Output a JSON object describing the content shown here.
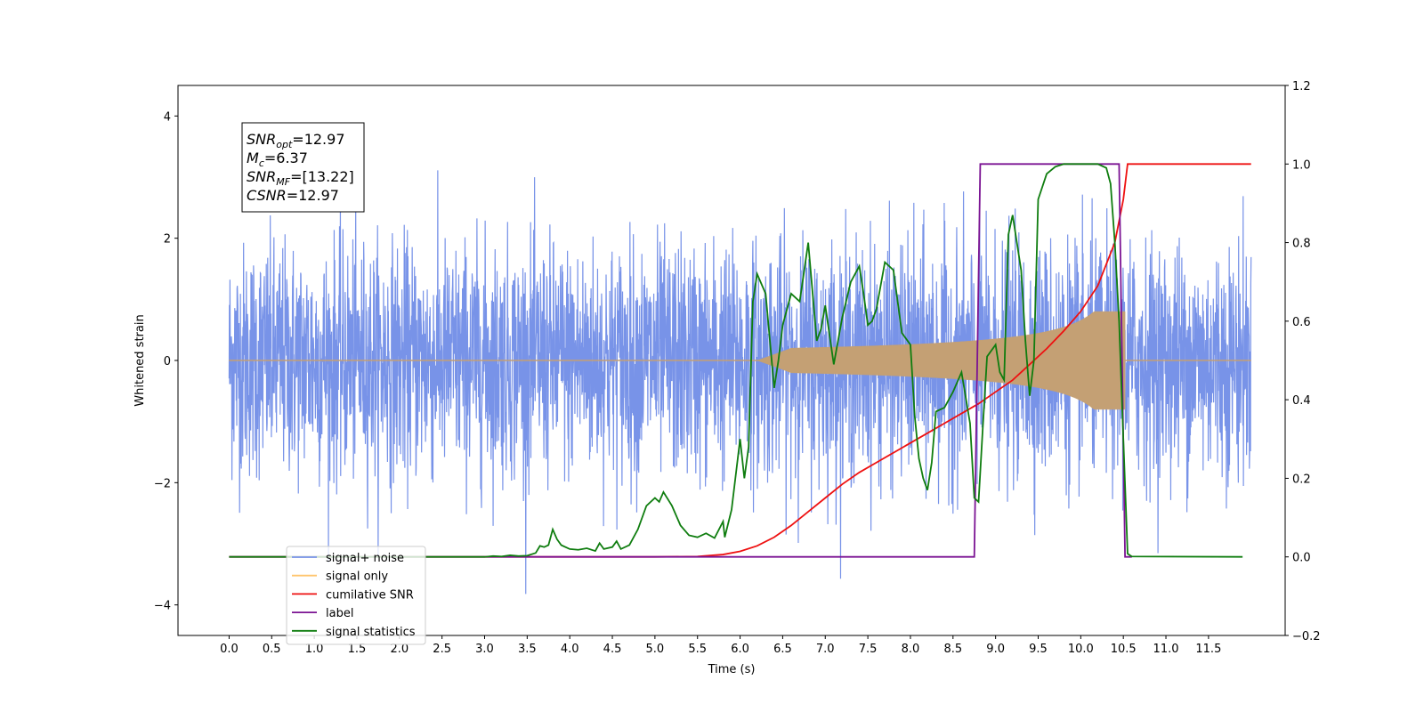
{
  "chart_data": {
    "type": "line",
    "xlabel": "Time (s)",
    "ylabel": "Whitened strain",
    "xlim": [
      -0.6,
      12.4
    ],
    "ylim": [
      -4.5,
      4.5
    ],
    "y2lim": [
      -0.2,
      1.2
    ],
    "x_ticks": [
      "0.0",
      "0.5",
      "1.0",
      "1.5",
      "2.0",
      "2.5",
      "3.0",
      "3.5",
      "4.0",
      "4.5",
      "5.0",
      "5.5",
      "6.0",
      "6.5",
      "7.0",
      "7.5",
      "8.0",
      "8.5",
      "9.0",
      "9.5",
      "10.0",
      "10.5",
      "11.0",
      "11.5"
    ],
    "y_ticks": [
      "4",
      "2",
      "0",
      "−2",
      "−4"
    ],
    "y2_ticks": [
      "1.2",
      "1.0",
      "0.8",
      "0.6",
      "0.4",
      "0.2",
      "0.0",
      "−0.2"
    ],
    "legend_position": "lower-left",
    "colors": {
      "noise": "#7893e8",
      "signal": "#c4a074",
      "signal_legend": "#ffc56e",
      "csnr": "#ee1111",
      "label": "#7b1393",
      "stats": "#0f7d0f"
    },
    "series": [
      {
        "name": "signal+ noise",
        "axis": "left",
        "description_color": "noise",
        "noise_envelope": {
          "x_range": [
            0.0,
            12.0
          ],
          "typical_amplitude": 1.8,
          "max_peak": 4.1,
          "min_peak": -4.0
        }
      },
      {
        "name": "signal only",
        "axis": "left",
        "description_color": "signal"
      },
      {
        "name": "cumilative SNR",
        "axis": "right",
        "x": [
          0,
          5.0,
          5.5,
          5.8,
          6.0,
          6.2,
          6.4,
          6.6,
          6.8,
          7.0,
          7.2,
          7.4,
          7.6,
          7.8,
          8.0,
          8.2,
          8.4,
          8.6,
          8.8,
          9.0,
          9.2,
          9.4,
          9.6,
          9.8,
          10.0,
          10.2,
          10.4,
          10.5,
          10.55,
          12.0
        ],
        "y": [
          0,
          0,
          0.001,
          0.006,
          0.014,
          0.028,
          0.05,
          0.08,
          0.115,
          0.15,
          0.185,
          0.215,
          0.24,
          0.265,
          0.29,
          0.315,
          0.34,
          0.365,
          0.39,
          0.42,
          0.45,
          0.49,
          0.53,
          0.575,
          0.625,
          0.69,
          0.8,
          0.91,
          1.0,
          1.0
        ]
      },
      {
        "name": "label",
        "axis": "right",
        "x": [
          0,
          8.75,
          8.82,
          10.45,
          10.52,
          10.6
        ],
        "y": [
          0,
          0,
          1,
          1,
          0,
          0
        ]
      },
      {
        "name": "signal statistics",
        "axis": "right",
        "x": [
          0,
          3.0,
          3.1,
          3.2,
          3.3,
          3.4,
          3.5,
          3.6,
          3.65,
          3.7,
          3.75,
          3.8,
          3.85,
          3.9,
          4.0,
          4.1,
          4.2,
          4.3,
          4.35,
          4.4,
          4.5,
          4.55,
          4.6,
          4.7,
          4.8,
          4.9,
          5.0,
          5.05,
          5.1,
          5.2,
          5.3,
          5.4,
          5.5,
          5.6,
          5.7,
          5.8,
          5.82,
          5.9,
          6.0,
          6.05,
          6.1,
          6.15,
          6.2,
          6.3,
          6.4,
          6.45,
          6.5,
          6.6,
          6.7,
          6.8,
          6.9,
          6.95,
          7.0,
          7.1,
          7.2,
          7.3,
          7.4,
          7.45,
          7.5,
          7.55,
          7.6,
          7.7,
          7.8,
          7.9,
          8.0,
          8.05,
          8.1,
          8.15,
          8.2,
          8.25,
          8.3,
          8.4,
          8.5,
          8.6,
          8.7,
          8.75,
          8.8,
          8.85,
          8.9,
          9.0,
          9.05,
          9.1,
          9.15,
          9.2,
          9.3,
          9.35,
          9.4,
          9.45,
          9.5,
          9.6,
          9.7,
          9.8,
          9.9,
          10.0,
          10.1,
          10.2,
          10.3,
          10.35,
          10.4,
          10.45,
          10.5,
          10.55,
          10.6,
          11.9
        ],
        "y": [
          0,
          0,
          0.002,
          0.001,
          0.004,
          0.002,
          0.003,
          0.01,
          0.028,
          0.025,
          0.03,
          0.07,
          0.045,
          0.03,
          0.02,
          0.018,
          0.022,
          0.015,
          0.035,
          0.02,
          0.025,
          0.04,
          0.02,
          0.03,
          0.07,
          0.13,
          0.15,
          0.14,
          0.165,
          0.13,
          0.08,
          0.055,
          0.05,
          0.06,
          0.048,
          0.09,
          0.05,
          0.12,
          0.3,
          0.2,
          0.28,
          0.65,
          0.72,
          0.67,
          0.43,
          0.5,
          0.59,
          0.67,
          0.65,
          0.8,
          0.55,
          0.58,
          0.64,
          0.49,
          0.61,
          0.7,
          0.74,
          0.67,
          0.59,
          0.6,
          0.63,
          0.75,
          0.73,
          0.57,
          0.54,
          0.36,
          0.25,
          0.2,
          0.17,
          0.24,
          0.37,
          0.38,
          0.42,
          0.47,
          0.34,
          0.15,
          0.14,
          0.33,
          0.51,
          0.54,
          0.47,
          0.45,
          0.82,
          0.87,
          0.73,
          0.55,
          0.41,
          0.5,
          0.91,
          0.975,
          0.993,
          1.0,
          1.0,
          1.0,
          1.0,
          1.0,
          0.99,
          0.95,
          0.8,
          0.6,
          0.3,
          0.008,
          0.001,
          0.0
        ]
      }
    ],
    "annotation": {
      "lines": [
        {
          "sym": "SNR",
          "sub": "opt",
          "val": "=12.97"
        },
        {
          "sym": "M",
          "sub": "c",
          "val": "=6.37"
        },
        {
          "sym": "SNR",
          "sub": "MF",
          "val": "=[13.22]"
        },
        {
          "sym": "CSNR",
          "sub": "",
          "val": "=12.97"
        }
      ]
    },
    "legend": [
      "signal+ noise",
      "signal only",
      "cumilative SNR",
      "label",
      "signal statistics"
    ]
  }
}
